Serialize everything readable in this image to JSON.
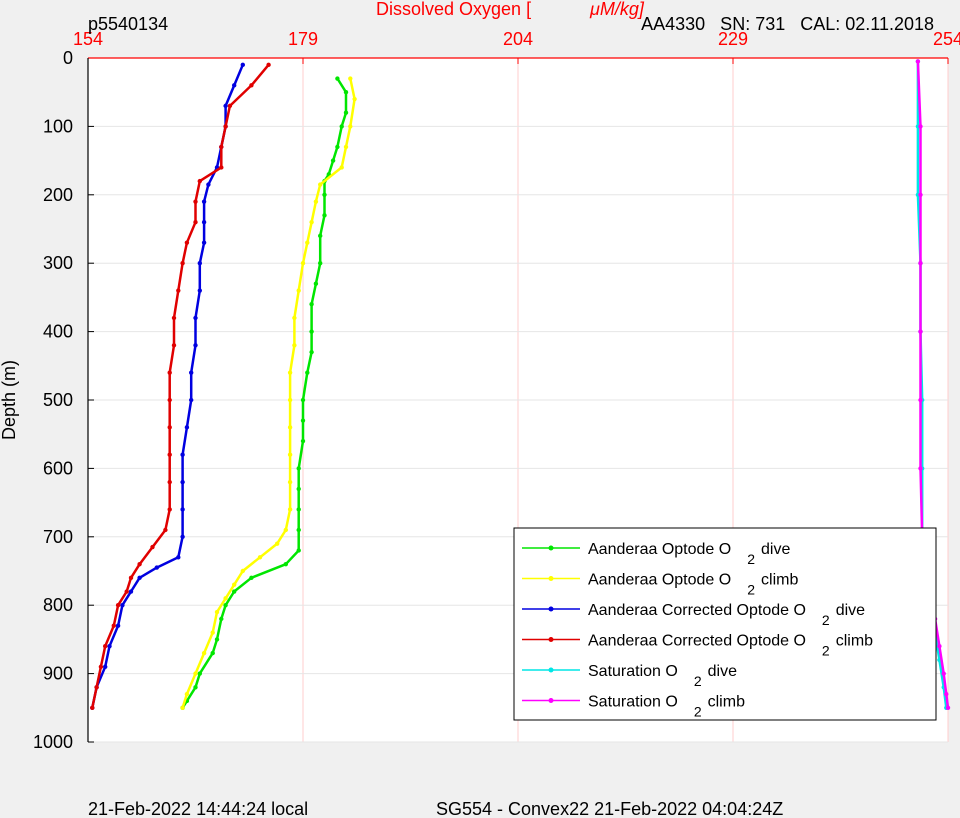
{
  "header": {
    "left_id": "p5540134",
    "title_prefix": "Dissolved Oxygen [",
    "title_unit": "μM/kg]",
    "right_info": "AA4330   SN: 731   CAL: 02.11.2018"
  },
  "footer": {
    "left": "21-Feb-2022 14:44:24 local",
    "right": "SG554 - Convex22 21-Feb-2022 04:04:24Z"
  },
  "colors": {
    "optode_dive": "#00e600",
    "optode_climb": "#ffff00",
    "corrected_dive": "#0000e0",
    "corrected_climb": "#e00000",
    "saturation_dive": "#00e6e6",
    "saturation_climb": "#ff00ff",
    "top_axis": "#ff0000",
    "gridlines": "#ffcccc"
  },
  "chart_data": {
    "type": "scatter",
    "title": "Dissolved Oxygen [μM/kg]",
    "xlabel": "",
    "ylabel": "Depth (m)",
    "xlim": [
      154,
      254
    ],
    "ylim": [
      0,
      1000
    ],
    "y_reversed": true,
    "x_ticks": [
      "154",
      "179",
      "204",
      "229",
      "254"
    ],
    "y_ticks": [
      "0",
      "100",
      "200",
      "300",
      "400",
      "500",
      "600",
      "700",
      "800",
      "900",
      "1000"
    ],
    "grid": true,
    "legend_position": "bottom-right",
    "series": [
      {
        "name": "Aanderaa Optode O2 dive",
        "legend": {
          "pre": "Aanderaa Optode O",
          "sub": "2",
          "post": "dive"
        },
        "color": "#00e600",
        "points": [
          [
            183.0,
            30
          ],
          [
            184.0,
            50
          ],
          [
            184.0,
            80
          ],
          [
            183.5,
            100
          ],
          [
            183.0,
            130
          ],
          [
            182.5,
            150
          ],
          [
            182.0,
            170
          ],
          [
            181.5,
            180
          ],
          [
            181.5,
            200
          ],
          [
            181.5,
            230
          ],
          [
            181.0,
            260
          ],
          [
            181.0,
            300
          ],
          [
            180.5,
            330
          ],
          [
            180.0,
            360
          ],
          [
            180.0,
            400
          ],
          [
            180.0,
            430
          ],
          [
            179.5,
            460
          ],
          [
            179.0,
            500
          ],
          [
            179.0,
            530
          ],
          [
            179.0,
            560
          ],
          [
            178.5,
            600
          ],
          [
            178.5,
            630
          ],
          [
            178.5,
            660
          ],
          [
            178.5,
            690
          ],
          [
            178.5,
            720
          ],
          [
            177.0,
            740
          ],
          [
            173.0,
            760
          ],
          [
            171.0,
            780
          ],
          [
            170.0,
            800
          ],
          [
            169.5,
            820
          ],
          [
            169.0,
            850
          ],
          [
            168.5,
            870
          ],
          [
            167.0,
            900
          ],
          [
            166.5,
            920
          ],
          [
            165.5,
            940
          ],
          [
            165.0,
            950
          ]
        ]
      },
      {
        "name": "Aanderaa Optode O2 climb",
        "legend": {
          "pre": "Aanderaa Optode O",
          "sub": "2",
          "post": "climb"
        },
        "color": "#ffff00",
        "points": [
          [
            184.5,
            30
          ],
          [
            185.0,
            60
          ],
          [
            184.5,
            100
          ],
          [
            184.0,
            130
          ],
          [
            183.5,
            160
          ],
          [
            181.0,
            185
          ],
          [
            180.5,
            210
          ],
          [
            180.0,
            240
          ],
          [
            179.5,
            270
          ],
          [
            179.0,
            300
          ],
          [
            178.5,
            340
          ],
          [
            178.0,
            380
          ],
          [
            178.0,
            420
          ],
          [
            177.5,
            460
          ],
          [
            177.5,
            500
          ],
          [
            177.5,
            540
          ],
          [
            177.5,
            580
          ],
          [
            177.5,
            620
          ],
          [
            177.5,
            660
          ],
          [
            177.0,
            690
          ],
          [
            176.0,
            710
          ],
          [
            174.0,
            730
          ],
          [
            172.0,
            750
          ],
          [
            171.0,
            770
          ],
          [
            170.0,
            790
          ],
          [
            169.0,
            810
          ],
          [
            168.5,
            840
          ],
          [
            167.5,
            870
          ],
          [
            166.5,
            900
          ],
          [
            165.5,
            930
          ],
          [
            165.0,
            950
          ]
        ]
      },
      {
        "name": "Aanderaa Corrected Optode O2 dive",
        "legend": {
          "pre": "Aanderaa Corrected Optode O",
          "sub": "2",
          "post": "dive"
        },
        "color": "#0000e0",
        "points": [
          [
            172.0,
            10
          ],
          [
            171.0,
            40
          ],
          [
            170.0,
            70
          ],
          [
            170.0,
            100
          ],
          [
            169.5,
            130
          ],
          [
            169.0,
            160
          ],
          [
            168.0,
            185
          ],
          [
            167.5,
            210
          ],
          [
            167.5,
            240
          ],
          [
            167.5,
            270
          ],
          [
            167.0,
            300
          ],
          [
            167.0,
            340
          ],
          [
            166.5,
            380
          ],
          [
            166.5,
            420
          ],
          [
            166.0,
            460
          ],
          [
            166.0,
            500
          ],
          [
            165.5,
            540
          ],
          [
            165.0,
            580
          ],
          [
            165.0,
            620
          ],
          [
            165.0,
            660
          ],
          [
            165.0,
            700
          ],
          [
            164.5,
            730
          ],
          [
            162.0,
            745
          ],
          [
            160.0,
            760
          ],
          [
            159.0,
            780
          ],
          [
            158.0,
            800
          ],
          [
            157.5,
            830
          ],
          [
            156.5,
            860
          ],
          [
            156.0,
            890
          ],
          [
            155.0,
            920
          ],
          [
            154.5,
            950
          ]
        ]
      },
      {
        "name": "Aanderaa Corrected Optode O2 climb",
        "legend": {
          "pre": "Aanderaa Corrected Optode O",
          "sub": "2",
          "post": "climb"
        },
        "color": "#e00000",
        "points": [
          [
            175.0,
            10
          ],
          [
            173.0,
            40
          ],
          [
            170.5,
            70
          ],
          [
            170.0,
            100
          ],
          [
            169.5,
            130
          ],
          [
            169.5,
            160
          ],
          [
            167.0,
            180
          ],
          [
            166.5,
            210
          ],
          [
            166.5,
            240
          ],
          [
            165.5,
            270
          ],
          [
            165.0,
            300
          ],
          [
            164.5,
            340
          ],
          [
            164.0,
            380
          ],
          [
            164.0,
            420
          ],
          [
            163.5,
            460
          ],
          [
            163.5,
            500
          ],
          [
            163.5,
            540
          ],
          [
            163.5,
            580
          ],
          [
            163.5,
            620
          ],
          [
            163.5,
            660
          ],
          [
            163.0,
            690
          ],
          [
            161.5,
            715
          ],
          [
            160.0,
            740
          ],
          [
            159.0,
            760
          ],
          [
            158.5,
            780
          ],
          [
            157.5,
            800
          ],
          [
            157.0,
            830
          ],
          [
            156.0,
            860
          ],
          [
            155.5,
            890
          ],
          [
            155.0,
            920
          ],
          [
            154.5,
            950
          ]
        ]
      },
      {
        "name": "Saturation O2 dive",
        "legend": {
          "pre": "Saturation O",
          "sub": "2",
          "post": "dive"
        },
        "color": "#00e6e6",
        "points": [
          [
            250.5,
            5
          ],
          [
            250.5,
            100
          ],
          [
            250.5,
            200
          ],
          [
            250.8,
            300
          ],
          [
            250.8,
            400
          ],
          [
            251.0,
            500
          ],
          [
            251.0,
            600
          ],
          [
            251.0,
            700
          ],
          [
            251.5,
            760
          ],
          [
            252.0,
            800
          ],
          [
            252.5,
            840
          ],
          [
            253.0,
            880
          ],
          [
            253.5,
            920
          ],
          [
            253.8,
            950
          ]
        ]
      },
      {
        "name": "Saturation O2 climb",
        "legend": {
          "pre": "Saturation O",
          "sub": "2",
          "post": "climb"
        },
        "color": "#ff00ff",
        "points": [
          [
            250.5,
            5
          ],
          [
            250.8,
            100
          ],
          [
            250.8,
            200
          ],
          [
            250.8,
            300
          ],
          [
            250.8,
            400
          ],
          [
            250.8,
            500
          ],
          [
            250.8,
            600
          ],
          [
            251.0,
            700
          ],
          [
            251.5,
            740
          ],
          [
            252.0,
            780
          ],
          [
            252.5,
            820
          ],
          [
            253.0,
            860
          ],
          [
            253.5,
            900
          ],
          [
            253.8,
            930
          ],
          [
            254.0,
            950
          ]
        ]
      }
    ]
  }
}
